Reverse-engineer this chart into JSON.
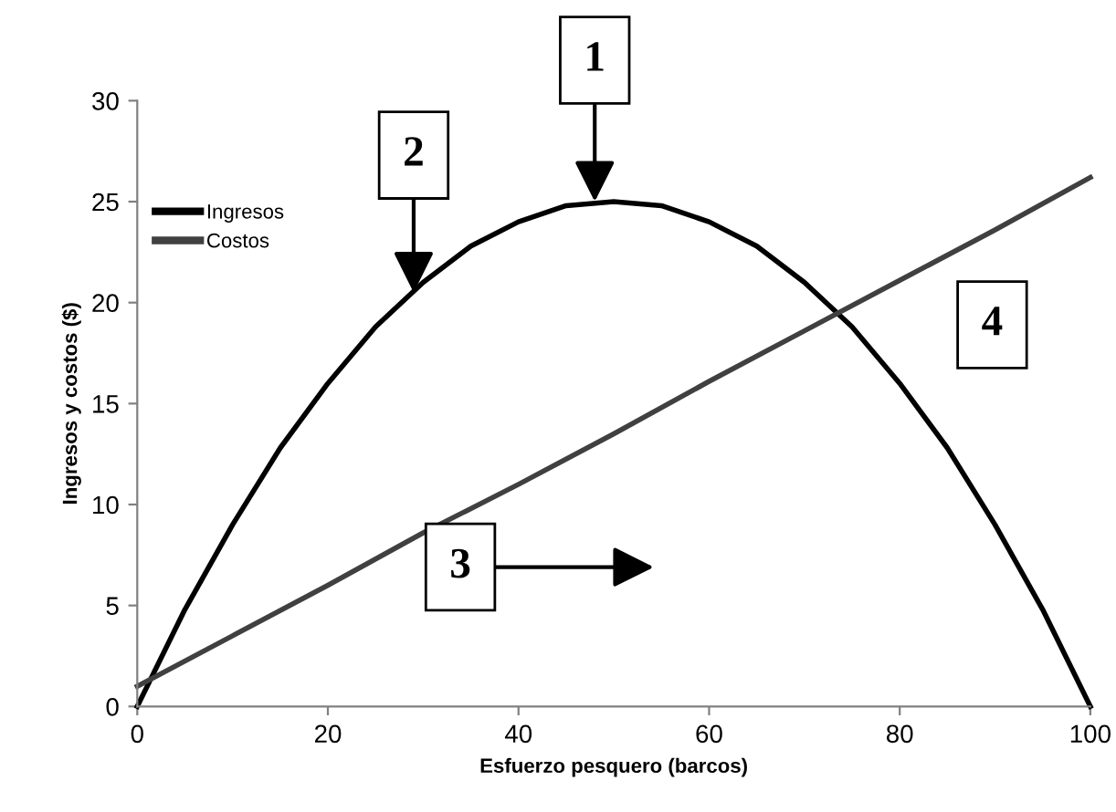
{
  "chart_data": {
    "type": "line",
    "xlabel": "Esfuerzo pesquero (barcos)",
    "ylabel": "Ingresos y costos ($)",
    "xlim": [
      0,
      100
    ],
    "xticks": [
      0,
      20,
      40,
      60,
      80,
      100
    ],
    "ylim": [
      0,
      30
    ],
    "yticks": [
      0,
      5,
      10,
      15,
      20,
      25,
      30
    ],
    "grid": false,
    "legend": "top left",
    "marker": "none",
    "line_style": "solid",
    "series": [
      {
        "name": "Ingresos",
        "color": "#000000",
        "x": [
          0,
          5,
          10,
          15,
          20,
          25,
          30,
          35,
          40,
          45,
          50,
          55,
          60,
          65,
          70,
          75,
          80,
          85,
          90,
          95,
          100
        ],
        "values": [
          0,
          4.8,
          9,
          12.8,
          16,
          18.8,
          21,
          22.8,
          24,
          24.8,
          25,
          24.8,
          24,
          22.8,
          21,
          18.8,
          16,
          12.8,
          9,
          4.8,
          0
        ]
      },
      {
        "name": "Costos",
        "color": "#404040",
        "x": [
          0,
          10,
          20,
          30,
          40,
          50,
          60,
          70,
          80,
          90,
          100
        ],
        "values": [
          1,
          3.5,
          6,
          8.6,
          11,
          13.5,
          16.1,
          18.6,
          21.1,
          23.6,
          26.2
        ]
      }
    ],
    "annotations": [
      {
        "text": "1",
        "x": 48,
        "y": 25
      },
      {
        "text": "2",
        "x": 29,
        "y": 20.5
      },
      "3",
      "4"
    ]
  }
}
